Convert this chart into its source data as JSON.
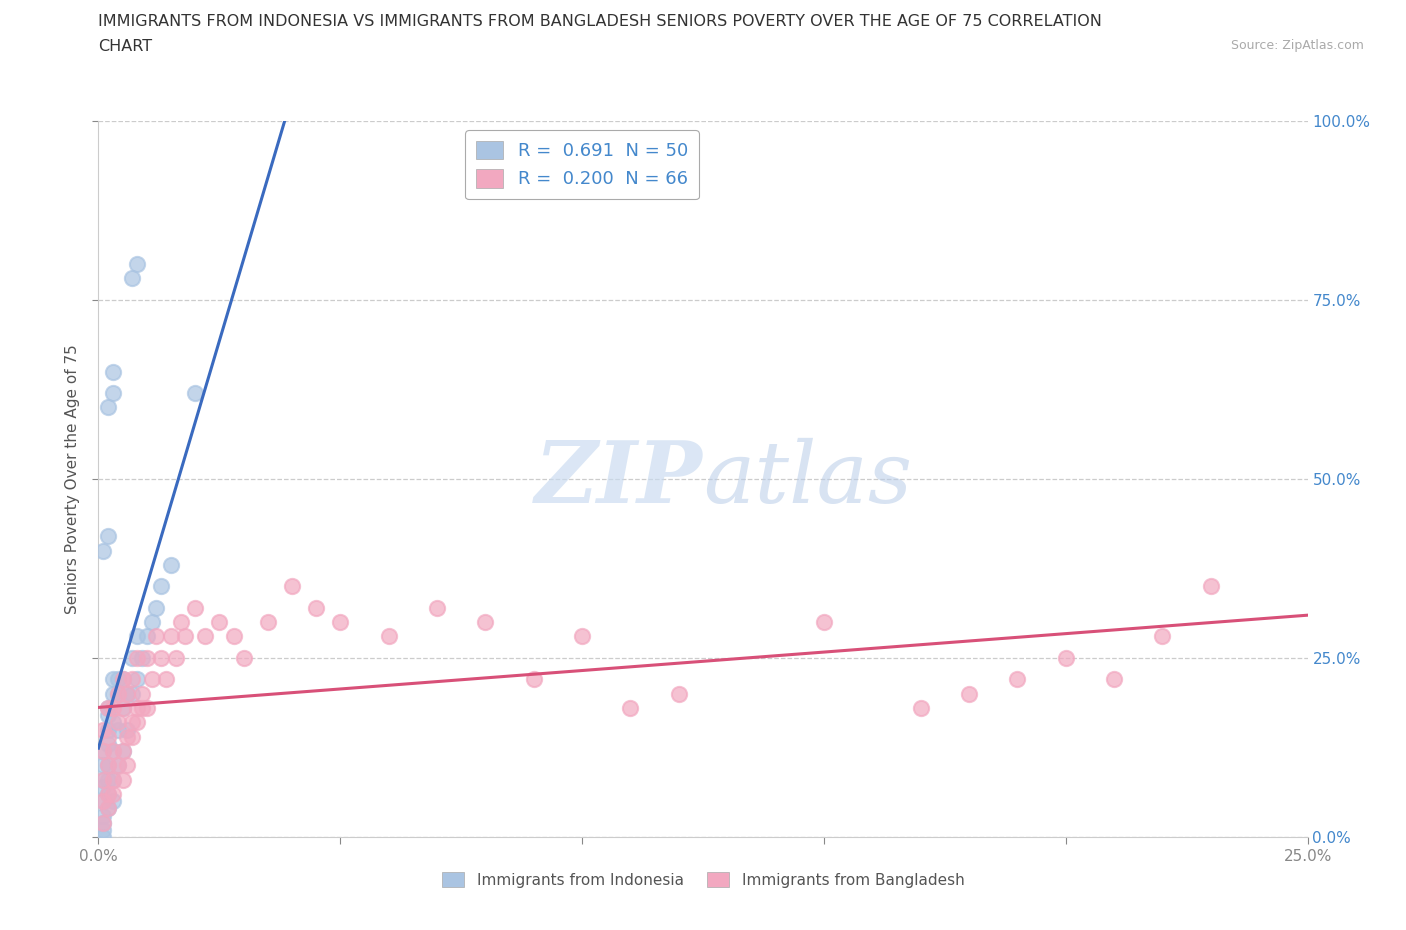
{
  "title_line1": "IMMIGRANTS FROM INDONESIA VS IMMIGRANTS FROM BANGLADESH SENIORS POVERTY OVER THE AGE OF 75 CORRELATION",
  "title_line2": "CHART",
  "source": "Source: ZipAtlas.com",
  "ylabel": "Seniors Poverty Over the Age of 75",
  "xlim": [
    0.0,
    0.25
  ],
  "ylim": [
    0.0,
    1.0
  ],
  "xticks": [
    0.0,
    0.05,
    0.1,
    0.15,
    0.2,
    0.25
  ],
  "yticks": [
    0.0,
    0.25,
    0.5,
    0.75,
    1.0
  ],
  "right_ytick_labels": [
    "0.0%",
    "25.0%",
    "50.0%",
    "75.0%",
    "100.0%"
  ],
  "bottom_xtick_labels": [
    "0.0%",
    "",
    "",
    "",
    "",
    "25.0%"
  ],
  "indonesia_color": "#aac4e2",
  "bangladesh_color": "#f2a8c0",
  "indonesia_line_color": "#3a6abf",
  "bangladesh_line_color": "#d85078",
  "indonesia_R": 0.691,
  "indonesia_N": 50,
  "bangladesh_R": 0.2,
  "bangladesh_N": 66,
  "watermark_zip": "ZIP",
  "watermark_atlas": "atlas",
  "legend_label_1": "Immigrants from Indonesia",
  "legend_label_2": "Immigrants from Bangladesh",
  "indonesia_x": [
    0.001,
    0.001,
    0.001,
    0.001,
    0.001,
    0.001,
    0.001,
    0.002,
    0.002,
    0.002,
    0.002,
    0.002,
    0.002,
    0.002,
    0.002,
    0.003,
    0.003,
    0.003,
    0.003,
    0.003,
    0.003,
    0.004,
    0.004,
    0.004,
    0.004,
    0.005,
    0.005,
    0.005,
    0.006,
    0.006,
    0.007,
    0.007,
    0.008,
    0.008,
    0.009,
    0.01,
    0.011,
    0.012,
    0.013,
    0.015,
    0.001,
    0.002,
    0.002,
    0.003,
    0.003,
    0.007,
    0.008,
    0.02,
    0.001,
    0.001
  ],
  "indonesia_y": [
    0.02,
    0.03,
    0.05,
    0.07,
    0.08,
    0.1,
    0.12,
    0.04,
    0.06,
    0.08,
    0.1,
    0.13,
    0.15,
    0.17,
    0.18,
    0.05,
    0.08,
    0.12,
    0.16,
    0.2,
    0.22,
    0.1,
    0.15,
    0.2,
    0.22,
    0.12,
    0.18,
    0.22,
    0.15,
    0.2,
    0.2,
    0.25,
    0.22,
    0.28,
    0.25,
    0.28,
    0.3,
    0.32,
    0.35,
    0.38,
    0.4,
    0.42,
    0.6,
    0.62,
    0.65,
    0.78,
    0.8,
    0.62,
    0.0,
    0.01
  ],
  "bangladesh_x": [
    0.001,
    0.001,
    0.001,
    0.001,
    0.002,
    0.002,
    0.002,
    0.002,
    0.003,
    0.003,
    0.003,
    0.004,
    0.004,
    0.004,
    0.005,
    0.005,
    0.005,
    0.006,
    0.006,
    0.007,
    0.007,
    0.008,
    0.008,
    0.009,
    0.01,
    0.01,
    0.011,
    0.012,
    0.013,
    0.014,
    0.015,
    0.016,
    0.017,
    0.018,
    0.02,
    0.022,
    0.025,
    0.028,
    0.03,
    0.035,
    0.04,
    0.045,
    0.05,
    0.06,
    0.07,
    0.08,
    0.09,
    0.1,
    0.11,
    0.12,
    0.001,
    0.002,
    0.003,
    0.005,
    0.006,
    0.007,
    0.008,
    0.009,
    0.15,
    0.2,
    0.21,
    0.22,
    0.17,
    0.18,
    0.19,
    0.23
  ],
  "bangladesh_y": [
    0.05,
    0.08,
    0.12,
    0.15,
    0.06,
    0.1,
    0.14,
    0.18,
    0.08,
    0.12,
    0.18,
    0.1,
    0.16,
    0.2,
    0.12,
    0.18,
    0.22,
    0.14,
    0.2,
    0.16,
    0.22,
    0.18,
    0.25,
    0.2,
    0.18,
    0.25,
    0.22,
    0.28,
    0.25,
    0.22,
    0.28,
    0.25,
    0.3,
    0.28,
    0.32,
    0.28,
    0.3,
    0.28,
    0.25,
    0.3,
    0.35,
    0.32,
    0.3,
    0.28,
    0.32,
    0.3,
    0.22,
    0.28,
    0.18,
    0.2,
    0.02,
    0.04,
    0.06,
    0.08,
    0.1,
    0.14,
    0.16,
    0.18,
    0.3,
    0.25,
    0.22,
    0.28,
    0.18,
    0.2,
    0.22,
    0.35
  ],
  "grid_color": "#cccccc",
  "title_color": "#333333",
  "tick_color": "#888888",
  "right_tick_color": "#4488cc"
}
